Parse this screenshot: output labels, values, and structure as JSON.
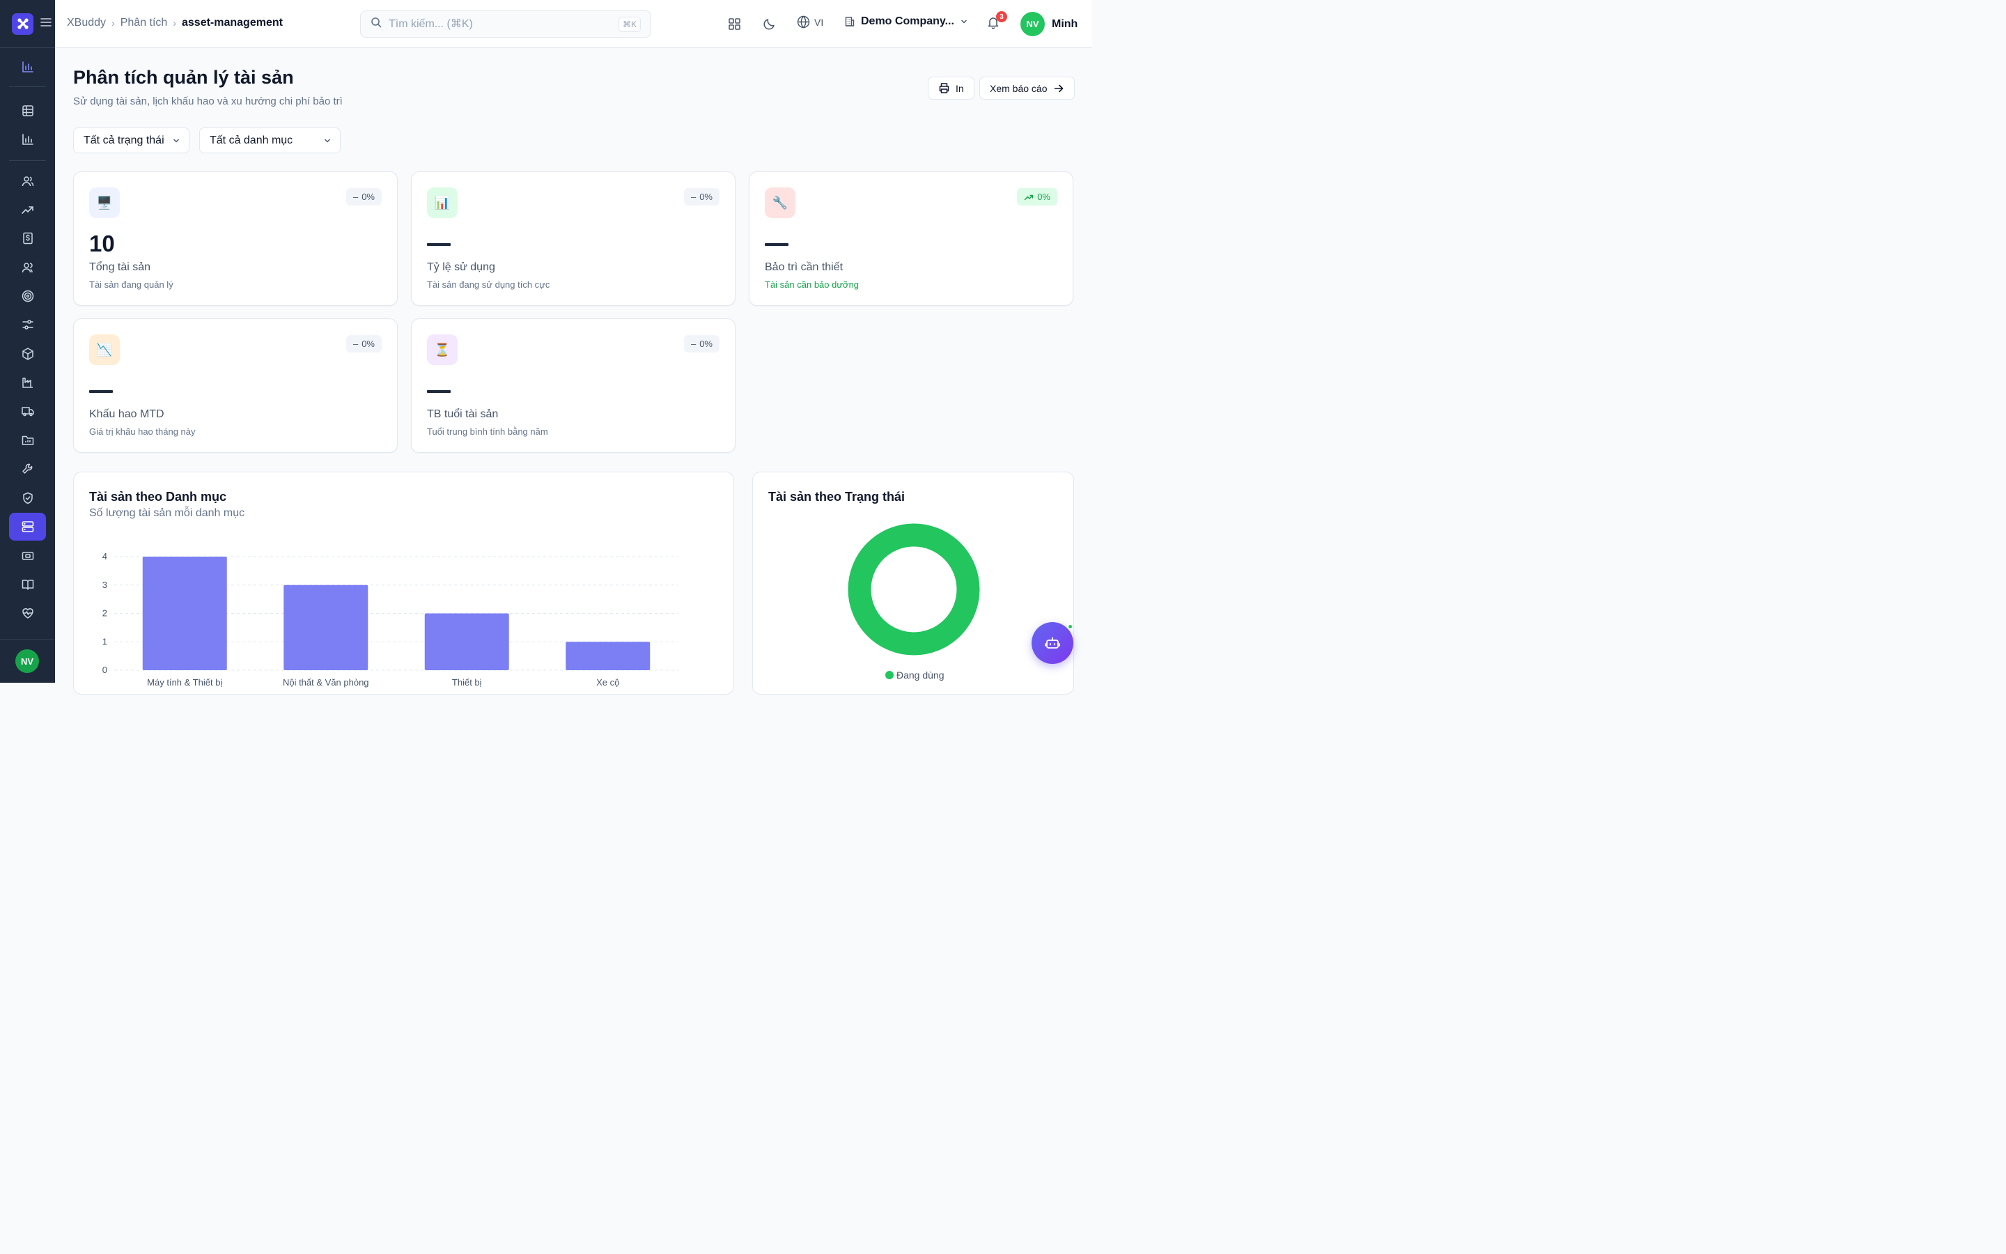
{
  "header": {
    "breadcrumb": [
      "XBuddy",
      "Phân tích",
      "asset-management"
    ],
    "search_placeholder": "Tìm kiếm... (⌘K)",
    "search_shortcut": "⌘K",
    "language": "VI",
    "company": "Demo Company...",
    "notifications": "3",
    "user_initials": "NV",
    "user_name": "Minh"
  },
  "sidebar": {
    "avatar_initials": "NV",
    "items": [
      "analytics-icon",
      "table-icon",
      "bar-chart-icon",
      "users-icon",
      "trending-up-icon",
      "dollar-icon",
      "contacts-icon",
      "target-icon",
      "sliders-icon",
      "package-icon",
      "factory-icon",
      "truck-icon",
      "folder-chart-icon",
      "wrench-icon",
      "shield-icon",
      "server-icon",
      "ticket-icon",
      "book-icon",
      "heart-pulse-icon"
    ],
    "active": "server-icon"
  },
  "page": {
    "title": "Phân tích quản lý tài sản",
    "subtitle": "Sử dụng tài sản, lịch khấu hao và xu hướng chi phí bảo trì",
    "print_label": "In",
    "report_label": "Xem báo cáo"
  },
  "filters": {
    "status": "Tất cả trạng thái",
    "category": "Tất cả danh mục"
  },
  "kpis": [
    {
      "value": "10",
      "label": "Tổng tài sản",
      "sub": "Tài sản đang quản lý",
      "change": "0%",
      "trend": "flat",
      "icon": "🖥️",
      "icon_bg": "#eef2ff"
    },
    {
      "value": "—",
      "label": "Tỷ lệ sử dụng",
      "sub": "Tài sản đang sử dụng tích cực",
      "change": "0%",
      "trend": "flat",
      "icon": "📊",
      "icon_bg": "#dcfce7"
    },
    {
      "value": "—",
      "label": "Bảo trì cần thiết",
      "sub": "Tài sản cần bảo dưỡng",
      "change": "0%",
      "trend": "up",
      "icon": "🔧",
      "icon_bg": "#fee2e2"
    },
    {
      "value": "—",
      "label": "Khấu hao MTD",
      "sub": "Giá trị khấu hao tháng này",
      "change": "0%",
      "trend": "flat",
      "icon": "📉",
      "icon_bg": "#ffedd5"
    },
    {
      "value": "—",
      "label": "TB tuổi tài sản",
      "sub": "Tuổi trung bình tính bằng năm",
      "change": "0%",
      "trend": "flat",
      "icon": "⏳",
      "icon_bg": "#f3e8ff"
    }
  ],
  "charts": {
    "category": {
      "title": "Tài sản theo Danh mục",
      "subtitle": "Số lượng tài sản mỗi danh mục"
    },
    "status": {
      "title": "Tài sản theo Trạng thái",
      "legend": "Đang dùng"
    }
  },
  "chart_data": [
    {
      "type": "bar",
      "title": "Tài sản theo Danh mục",
      "subtitle": "Số lượng tài sản mỗi danh mục",
      "categories": [
        "Máy tính & Thiết bị",
        "Nội thất & Văn phòng",
        "Thiết bị",
        "Xe cộ"
      ],
      "values": [
        4,
        3,
        2,
        1
      ],
      "ylim": [
        0,
        4
      ],
      "yticks": [
        0,
        1,
        2,
        3,
        4
      ],
      "color": "#7c7ff4",
      "grid": true
    },
    {
      "type": "pie",
      "title": "Tài sản theo Trạng thái",
      "labels": [
        "Đang dùng"
      ],
      "values": [
        10
      ],
      "colors": [
        "#22c55e"
      ],
      "legend": "bottom"
    }
  ]
}
